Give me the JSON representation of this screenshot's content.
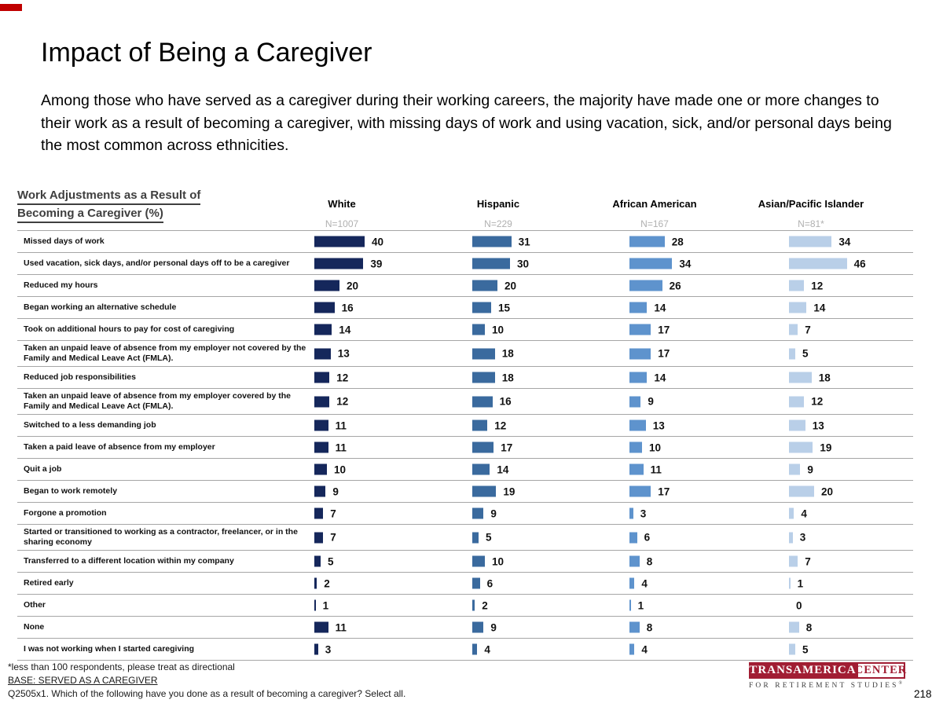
{
  "slide": {
    "title": "Impact of Being a Caregiver",
    "intro": "Among those who have served as a caregiver during their working careers, the majority have made one or more changes to their work as a result of becoming a caregiver, with missing days of work and using vacation, sick, and/or personal days being the most common across ethnicities.",
    "page_number": "218",
    "corner_color": "#c00000"
  },
  "chart_data": {
    "type": "bar",
    "orientation": "horizontal",
    "title_line1": "Work Adjustments as a Result of",
    "title_line2": "Becoming a Caregiver (%)",
    "unit": "%",
    "xlim": [
      0,
      50
    ],
    "grid": "row-separator-lines",
    "legend_position": "column-headers-top",
    "categories": [
      "Missed days of work",
      "Used vacation, sick days, and/or personal days off to be a caregiver",
      "Reduced my hours",
      "Began working an alternative schedule",
      "Took on additional hours to pay for cost of caregiving",
      "Taken an unpaid leave of absence from my employer not covered by the Family and Medical Leave Act (FMLA).",
      "Reduced job responsibilities",
      "Taken an unpaid leave of absence from my employer covered by the Family and Medical Leave Act (FMLA).",
      "Switched to a less demanding job",
      "Taken a paid leave of absence from my employer",
      "Quit a job",
      "Began to work remotely",
      "Forgone a promotion",
      "Started or transitioned to working as a contractor, freelancer, or in the sharing economy",
      "Transferred to a different location within my company",
      "Retired early",
      "Other",
      "None",
      "I was not working when I started caregiving"
    ],
    "series": [
      {
        "name": "White",
        "n_label": "N=1007",
        "color": "#15275b",
        "values": [
          40,
          39,
          20,
          16,
          14,
          13,
          12,
          12,
          11,
          11,
          10,
          9,
          7,
          7,
          5,
          2,
          1,
          11,
          3
        ]
      },
      {
        "name": "Hispanic",
        "n_label": "N=229",
        "color": "#3a6a9e",
        "values": [
          31,
          30,
          20,
          15,
          10,
          18,
          18,
          16,
          12,
          17,
          14,
          19,
          9,
          5,
          10,
          6,
          2,
          9,
          4
        ]
      },
      {
        "name": "African American",
        "n_label": "N=167",
        "color": "#5e93cd",
        "values": [
          28,
          34,
          26,
          14,
          17,
          17,
          14,
          9,
          13,
          10,
          11,
          17,
          3,
          6,
          8,
          4,
          1,
          8,
          4
        ]
      },
      {
        "name": "Asian/Pacific Islander",
        "n_label": "N=81*",
        "color": "#b9cfe8",
        "values": [
          34,
          46,
          12,
          14,
          7,
          5,
          18,
          12,
          13,
          19,
          9,
          20,
          4,
          3,
          7,
          1,
          0,
          8,
          5
        ]
      }
    ]
  },
  "footnotes": {
    "line1": "*less than 100 respondents, please treat as directional",
    "line2": "BASE: SERVED AS A CAREGIVER",
    "line3": "Q2505x1. Which of the following have you done as a result of becoming a caregiver? Select all."
  },
  "logo": {
    "brand": "TRANSAMERICA",
    "center": "CENTER",
    "tagline": "FOR RETIREMENT STUDIES",
    "registered": "®",
    "red": "#a11d33"
  }
}
